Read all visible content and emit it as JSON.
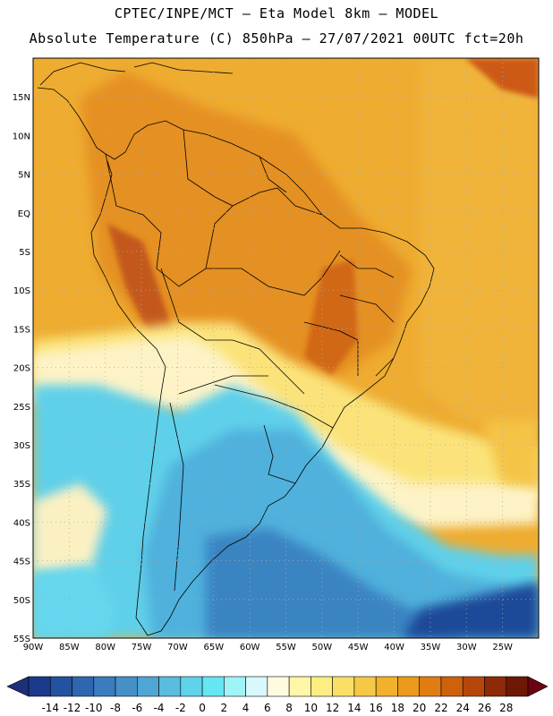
{
  "header": {
    "line1": "CPTEC/INPE/MCT –  Eta Model 8km – MODEL",
    "line2": "Absolute Temperature (C) 850hPa – 27/07/2021 00UTC fct=20h"
  },
  "map": {
    "lon_range": [
      -90,
      -20
    ],
    "lat_range": [
      -55,
      20
    ],
    "lat_labels": [
      "15N",
      "10N",
      "5N",
      "EQ",
      "5S",
      "10S",
      "15S",
      "20S",
      "25S",
      "30S",
      "35S",
      "40S",
      "45S",
      "50S",
      "55S"
    ],
    "lat_values": [
      15,
      10,
      5,
      0,
      -5,
      -10,
      -15,
      -20,
      -25,
      -30,
      -35,
      -40,
      -45,
      -50,
      -55
    ],
    "lon_labels": [
      "90W",
      "85W",
      "80W",
      "75W",
      "70W",
      "65W",
      "60W",
      "55W",
      "50W",
      "45W",
      "40W",
      "35W",
      "30W",
      "25W"
    ],
    "lon_values": [
      -90,
      -85,
      -80,
      -75,
      -70,
      -65,
      -60,
      -55,
      -50,
      -45,
      -40,
      -35,
      -30,
      -25
    ],
    "grid": "dotted"
  },
  "colorbar": {
    "labels": [
      "-14",
      "-12",
      "-10",
      "-8",
      "-6",
      "-4",
      "-2",
      "0",
      "2",
      "4",
      "6",
      "8",
      "10",
      "12",
      "14",
      "16",
      "18",
      "20",
      "22",
      "24",
      "26",
      "28"
    ],
    "colors": [
      "#1b3a8c",
      "#2451a0",
      "#2f66b0",
      "#3a7cbe",
      "#4690c8",
      "#4fa6d4",
      "#59bde0",
      "#5fd3ea",
      "#66e6f2",
      "#9ff4f8",
      "#d8f8fb",
      "#fffbe0",
      "#fff6a8",
      "#fdee82",
      "#f9df64",
      "#f5c846",
      "#f1b12a",
      "#ec9a1c",
      "#e07d12",
      "#cf600c",
      "#b6470a",
      "#8f2a08",
      "#6e1806"
    ],
    "left_arrow_color": "#1d2f78",
    "right_arrow_color": "#6a0410"
  },
  "colors": {
    "warm": "#eea92a",
    "orange": "#e38d19",
    "deep_orange": "#d7701a",
    "red": "#c25512",
    "yellow": "#f6d465",
    "pale": "#fdf4c8",
    "cyan": "#5fd0ea",
    "sky": "#4fb3dd",
    "blue": "#3b84c2",
    "navy": "#1f4a98",
    "border": "#000000",
    "grid": "#aaaaaa"
  }
}
